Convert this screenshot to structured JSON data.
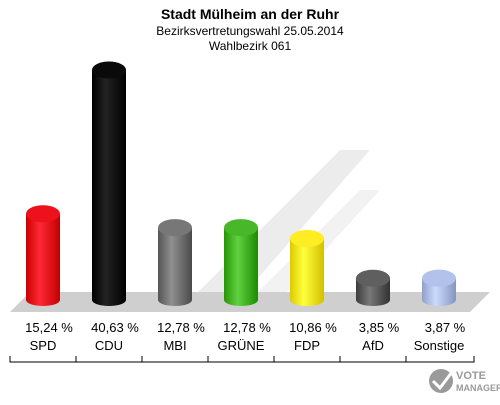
{
  "chart_data": {
    "type": "bar",
    "title": "Stadt Mülheim an der Ruhr",
    "subtitle": "Bezirksvertretungswahl 25.05.2014",
    "subtitle2": "Wahlbezirk 061",
    "categories": [
      "SPD",
      "CDU",
      "MBI",
      "GRÜNE",
      "FDP",
      "AfD",
      "Sonstige"
    ],
    "values": [
      15.24,
      40.63,
      12.78,
      12.78,
      10.86,
      3.85,
      3.87
    ],
    "value_labels": [
      "15,24 %",
      "40,63 %",
      "12,78 %",
      "12,78 %",
      "10,86 %",
      "3,85 %",
      "3,87 %"
    ],
    "colors": [
      "#e30613",
      "#000000",
      "#6d6d6d",
      "#3fae1e",
      "#f5e31a",
      "#555555",
      "#a8b8e0"
    ],
    "ylim": [
      0,
      40.63
    ],
    "grid": false,
    "legend": "none"
  },
  "watermark": {
    "line1": "VOTE",
    "line2": "MANAGER"
  }
}
